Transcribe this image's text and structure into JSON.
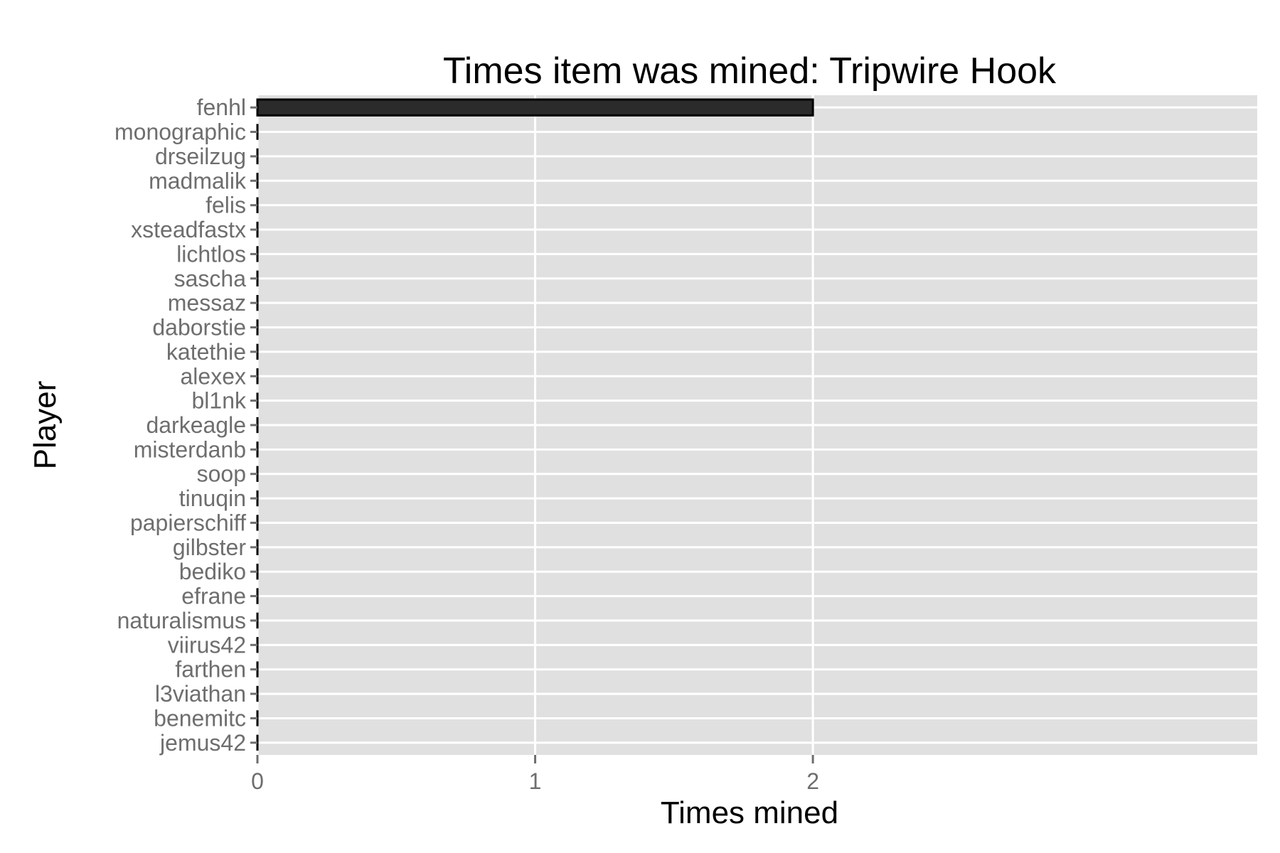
{
  "chart_data": {
    "type": "bar",
    "orientation": "horizontal",
    "title": "Times item was mined: Tripwire Hook",
    "xlabel": "Times mined",
    "ylabel": "Player",
    "categories": [
      "fenhl",
      "monographic",
      "drseilzug",
      "madmalik",
      "felis",
      "xsteadfastx",
      "lichtlos",
      "sascha",
      "messaz",
      "daborstie",
      "katethie",
      "alexex",
      "bl1nk",
      "darkeagle",
      "misterdanb",
      "soop",
      "tinuqin",
      "papierschiff",
      "gilbster",
      "bediko",
      "efrane",
      "naturalismus",
      "viirus42",
      "farthen",
      "l3viathan",
      "benemitc",
      "jemus42"
    ],
    "values": [
      2,
      0,
      0,
      0,
      0,
      0,
      0,
      0,
      0,
      0,
      0,
      0,
      0,
      0,
      0,
      0,
      0,
      0,
      0,
      0,
      0,
      0,
      0,
      0,
      0,
      0,
      0
    ],
    "xlim": [
      0,
      3.6
    ],
    "xticks": [
      0,
      1,
      2
    ],
    "grid": true,
    "legend": "none",
    "colors": {
      "panel": "#e0e0e0",
      "grid": "#ffffff",
      "bar_fill": "#2b2b2b",
      "bar_stroke": "#000000",
      "tick": "#6e6e6e"
    }
  }
}
